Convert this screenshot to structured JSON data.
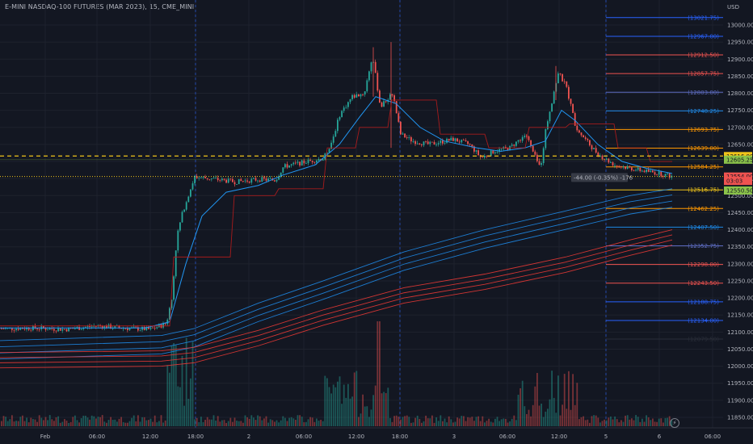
{
  "title": "E-MINI NASDAQ-100 FUTURES (MAR 2023), 15, CME_MINI",
  "currency": "USD",
  "colors": {
    "background": "#131722",
    "up": "#26a69a",
    "down": "#ef5350",
    "ema": "#2196f3",
    "band_blue": "#1e88e5",
    "band_red": "#e53935",
    "vwap": "#b71c1c",
    "yellow_dash": "#f0c419",
    "level_orange": "#ff9800",
    "level_blue": "#1e88e5",
    "level_red": "#ef5350",
    "current_price_bg": "#ef5350",
    "green_tag_bg": "#8bc34a"
  },
  "chart_data": {
    "type": "candlestick",
    "symbol": "E-MINI NASDAQ-100 FUTURES (MAR 2023)",
    "interval": "15",
    "exchange": "CME_MINI",
    "y_ticks": [
      13000,
      12950,
      12900,
      12850,
      12800,
      12750,
      12700,
      12650,
      12600,
      12550,
      12500,
      12450,
      12400,
      12350,
      12300,
      12250,
      12200,
      12150,
      12100,
      12050,
      12000,
      11950,
      11900,
      11850
    ],
    "x_ticks": [
      "Feb",
      "06:00",
      "12:00",
      "18:00",
      "2",
      "06:00",
      "12:00",
      "18:00",
      "3",
      "06:00",
      "12:00",
      "5",
      "6",
      "06:00"
    ],
    "levels": [
      {
        "label": "(13021.75)",
        "value": 13021.75,
        "color": "#2962ff"
      },
      {
        "label": "(12967.00)",
        "value": 12967.0,
        "color": "#2962ff"
      },
      {
        "label": "(12912.50)",
        "value": 12912.5,
        "color": "#ef5350"
      },
      {
        "label": "(12857.75)",
        "value": 12857.75,
        "color": "#ef5350"
      },
      {
        "label": "(12803.00)",
        "value": 12803.0,
        "color": "#5c6bc0"
      },
      {
        "label": "(12748.25)",
        "value": 12748.25,
        "color": "#1e88e5"
      },
      {
        "label": "(12693.75)",
        "value": 12693.75,
        "color": "#ff9800"
      },
      {
        "label": "(12639.00)",
        "value": 12639.0,
        "color": "#ff9800"
      },
      {
        "label": "(12584.25)",
        "value": 12584.25,
        "color": "#ff9800"
      },
      {
        "label": "(12516.75)",
        "value": 12516.75,
        "color": "#f0c419"
      },
      {
        "label": "(12462.25)",
        "value": 12462.25,
        "color": "#ff9800"
      },
      {
        "label": "(12407.50)",
        "value": 12407.5,
        "color": "#1e88e5"
      },
      {
        "label": "(12352.75)",
        "value": 12352.75,
        "color": "#5c6bc0"
      },
      {
        "label": "(12298.00)",
        "value": 12298.0,
        "color": "#ef5350"
      },
      {
        "label": "(12243.50)",
        "value": 12243.5,
        "color": "#ef5350"
      },
      {
        "label": "(12188.75)",
        "value": 12188.75,
        "color": "#2962ff"
      },
      {
        "label": "(12134.00)",
        "value": 12134.0,
        "color": "#2962ff"
      },
      {
        "label": "(12079.50)",
        "value": 12079.5,
        "color": "#2a2e39"
      }
    ],
    "price_tags": [
      {
        "label": "12616.00",
        "value": 12616.0,
        "bg": "#f0c419"
      },
      {
        "label": "12605.25",
        "value": 12605.25,
        "bg": "#8bc34a"
      },
      {
        "label": "12554.00",
        "value": 12556.0,
        "bg": "#ef5350"
      },
      {
        "label": "03:03",
        "value": 12543.0,
        "bg": "#ef5350"
      },
      {
        "label": "12550.50",
        "value": 12515.0,
        "bg": "#8bc34a"
      }
    ],
    "change_label": "-44.00 (-0.35%) -176",
    "current_price": 12554.0,
    "yellow_dashed_line": 12616.0,
    "dotted_line": 12556.0,
    "price_range": [
      11830,
      13050
    ]
  }
}
